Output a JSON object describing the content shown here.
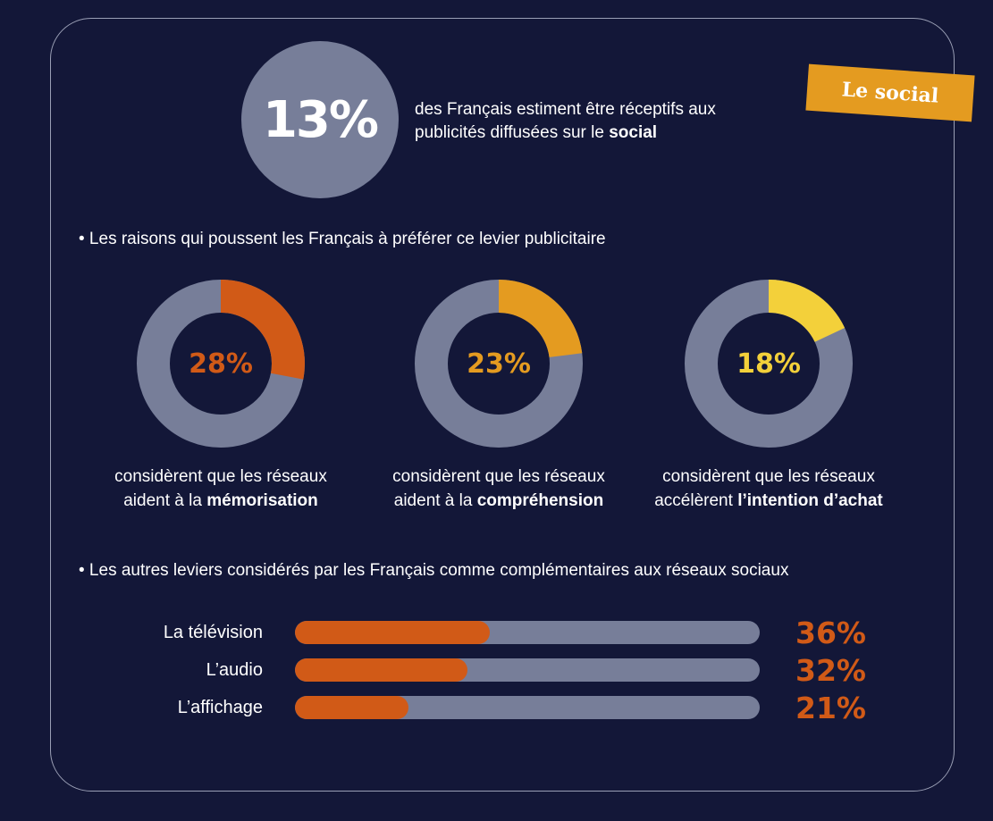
{
  "header": {
    "big_stat": "13%",
    "intro_line1": "des Français estiment être réceptifs aux",
    "intro_line2_prefix": "publicités diffusées sur le ",
    "intro_line2_bold": "social",
    "tag": "Le social"
  },
  "section1_title": "• Les raisons qui poussent les Français à préférer ce levier publicitaire",
  "section2_title": "• Les autres leviers considérés par les Français comme complémentaires aux réseaux sociaux",
  "colors": {
    "track": "#777e99",
    "orange": "#d15a17",
    "amber": "#e49b20",
    "yellow": "#f3d03a"
  },
  "chart_data": [
    {
      "type": "pie",
      "title": "Les raisons qui poussent les Français à préférer ce levier publicitaire",
      "donuts": [
        {
          "value": 28,
          "label": "28%",
          "line1": "considèrent que les réseaux",
          "line2_prefix": "aident à la ",
          "line2_bold": "mémorisation",
          "color": "#d15a17"
        },
        {
          "value": 23,
          "label": "23%",
          "line1": "considèrent que les réseaux",
          "line2_prefix": "aident à la ",
          "line2_bold": "compréhension",
          "color": "#e49b20"
        },
        {
          "value": 18,
          "label": "18%",
          "line1": "considèrent que les réseaux",
          "line2_prefix": "accélèrent ",
          "line2_bold": "l’intention d’achat",
          "color": "#f3d03a"
        }
      ]
    },
    {
      "type": "bar",
      "title": "Les autres leviers considérés par les Français comme complémentaires aux réseaux sociaux",
      "categories": [
        "La télévision",
        "L’audio",
        "L’affichage"
      ],
      "values": [
        36,
        32,
        21
      ],
      "value_labels": [
        "36%",
        "32%",
        "21%"
      ]
    }
  ]
}
